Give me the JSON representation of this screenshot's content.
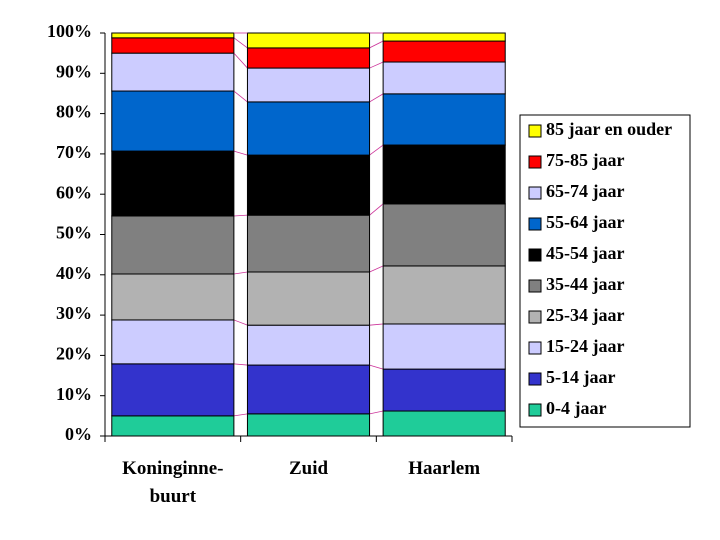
{
  "chart_data": {
    "type": "stacked_bar_100",
    "categories": [
      "Koninginne-buurt",
      "Zuid",
      "Haarlem"
    ],
    "series": [
      {
        "name": "0-4 jaar",
        "color": "#1fcc99",
        "values": [
          5.0,
          5.5,
          6.2
        ]
      },
      {
        "name": "5-14 jaar",
        "color": "#3333cc",
        "values": [
          12.9,
          12.1,
          10.4
        ]
      },
      {
        "name": "15-24 jaar",
        "color": "#ccccff",
        "values": [
          10.9,
          9.9,
          11.2
        ]
      },
      {
        "name": "25-34 jaar",
        "color": "#b2b2b2",
        "values": [
          11.4,
          13.2,
          14.4
        ]
      },
      {
        "name": "35-44 jaar",
        "color": "#808080",
        "values": [
          14.4,
          14.1,
          15.4
        ]
      },
      {
        "name": "45-54 jaar",
        "color": "#000000",
        "values": [
          16.1,
          14.9,
          14.6
        ]
      },
      {
        "name": "55-64 jaar",
        "color": "#0066cc",
        "values": [
          14.9,
          13.2,
          12.7
        ]
      },
      {
        "name": "65-74 jaar",
        "color": "#ccccff",
        "values": [
          9.4,
          8.4,
          7.9
        ]
      },
      {
        "name": "75-85 jaar",
        "color": "#ff0000",
        "values": [
          3.8,
          5.0,
          5.2
        ]
      },
      {
        "name": "85 jaar en ouder",
        "color": "#ffff00",
        "values": [
          1.2,
          3.7,
          2.0
        ]
      }
    ],
    "ylim": [
      0,
      100
    ],
    "yticks": [
      {
        "value": 0,
        "label": "0%"
      },
      {
        "value": 10,
        "label": "10%"
      },
      {
        "value": 20,
        "label": "20%"
      },
      {
        "value": 30,
        "label": "30%"
      },
      {
        "value": 40,
        "label": "40%"
      },
      {
        "value": 50,
        "label": "50%"
      },
      {
        "value": 60,
        "label": "60%"
      },
      {
        "value": 70,
        "label": "70%"
      },
      {
        "value": 80,
        "label": "80%"
      },
      {
        "value": 90,
        "label": "90%"
      },
      {
        "value": 100,
        "label": "100%"
      }
    ],
    "legend": "right"
  }
}
